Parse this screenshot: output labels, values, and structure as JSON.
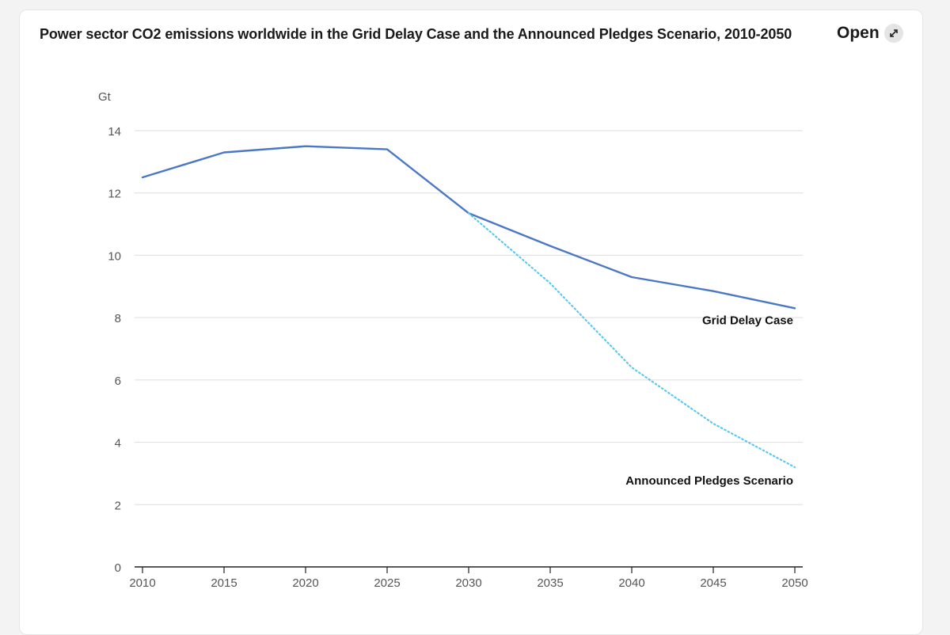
{
  "header": {
    "title": "Power sector CO2 emissions worldwide in the Grid Delay Case and the Announced Pledges Scenario, 2010-2050",
    "open_label": "Open",
    "open_icon": "expand-arrows-icon"
  },
  "chart_data": {
    "type": "line",
    "title": "Power sector CO2 emissions worldwide in the Grid Delay Case and the Announced Pledges Scenario, 2010-2050",
    "xlabel": "",
    "ylabel": "Gt",
    "x": [
      2010,
      2015,
      2020,
      2025,
      2030,
      2035,
      2040,
      2045,
      2050
    ],
    "xlim": [
      2010,
      2050
    ],
    "ylim": [
      0,
      14
    ],
    "yticks": [
      0,
      2,
      4,
      6,
      8,
      10,
      12,
      14
    ],
    "xticks": [
      2010,
      2015,
      2020,
      2025,
      2030,
      2035,
      2040,
      2045,
      2050
    ],
    "grid": true,
    "series": [
      {
        "name": "Grid Delay Case",
        "style": "solid",
        "color": "#4a78c4",
        "x": [
          2010,
          2015,
          2020,
          2025,
          2030,
          2035,
          2040,
          2045,
          2050
        ],
        "values": [
          12.5,
          13.3,
          13.5,
          13.4,
          11.35,
          10.3,
          9.3,
          8.85,
          8.3
        ]
      },
      {
        "name": "Announced Pledges Scenario",
        "style": "dotted",
        "color": "#5bc8ee",
        "x": [
          2030,
          2035,
          2040,
          2045,
          2050
        ],
        "values": [
          11.35,
          9.1,
          6.4,
          4.6,
          3.2
        ]
      }
    ]
  }
}
